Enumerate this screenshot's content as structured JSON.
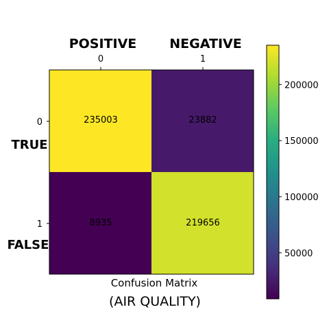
{
  "chart_data": {
    "type": "heatmap",
    "column_headers": [
      "POSITIVE",
      "NEGATIVE"
    ],
    "row_headers": [
      "TRUE",
      "FALSE"
    ],
    "x_ticks": [
      "0",
      "1"
    ],
    "y_ticks": [
      "0",
      "1"
    ],
    "matrix": [
      [
        235003,
        23882
      ],
      [
        8935,
        219656
      ]
    ],
    "cell_labels": [
      [
        "235003",
        "23882"
      ],
      [
        "8935",
        "219656"
      ]
    ],
    "xlabel": "Confusion Matrix",
    "subtitle": "(AIR QUALITY)",
    "colormap": "viridis",
    "colorbar": {
      "range": [
        8935,
        235003
      ],
      "ticks": [
        50000,
        100000,
        150000,
        200000
      ],
      "tick_labels": [
        "50000",
        "100000",
        "150000",
        "200000"
      ]
    }
  }
}
